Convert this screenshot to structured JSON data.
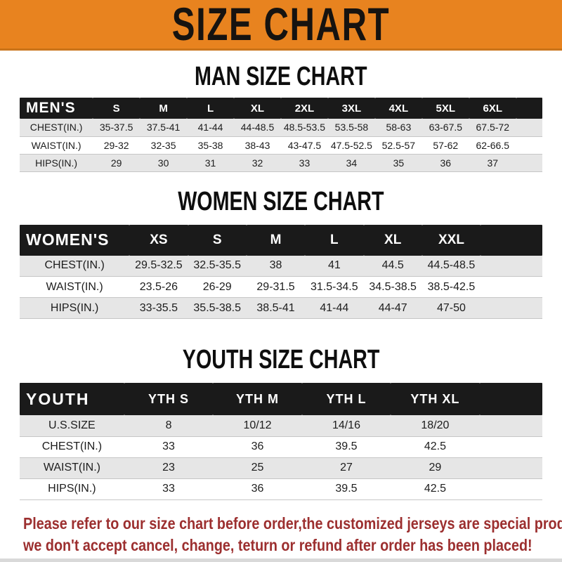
{
  "banner": {
    "title": "SIZE CHART"
  },
  "colors": {
    "banner_bg": "#E8831F",
    "header_bar": "#1A1A1A",
    "row_stripe": "#E6E6E6",
    "disclaimer_red": "#9C2F2F"
  },
  "tables": {
    "men": {
      "heading": "MAN SIZE CHART",
      "header": {
        "label": "MEN'S",
        "sizes": [
          "S",
          "M",
          "L",
          "XL",
          "2XL",
          "3XL",
          "4XL",
          "5XL",
          "6XL"
        ]
      },
      "col_widths": [
        "14%",
        "9%",
        "9%",
        "9%",
        "9%",
        "9%",
        "9%",
        "9%",
        "9%",
        "9%",
        "5%"
      ],
      "rows": [
        {
          "label": "CHEST(IN.)",
          "values": [
            "35-37.5",
            "37.5-41",
            "41-44",
            "44-48.5",
            "48.5-53.5",
            "53.5-58",
            "58-63",
            "63-67.5",
            "67.5-72"
          ]
        },
        {
          "label": "WAIST(IN.)",
          "values": [
            "29-32",
            "32-35",
            "35-38",
            "38-43",
            "43-47.5",
            "47.5-52.5",
            "52.5-57",
            "57-62",
            "62-66.5"
          ]
        },
        {
          "label": "HIPS(IN.)",
          "values": [
            "29",
            "30",
            "31",
            "32",
            "33",
            "34",
            "35",
            "36",
            "37"
          ]
        }
      ]
    },
    "women": {
      "heading": "WOMEN SIZE CHART",
      "header": {
        "label": "WOMEN'S",
        "sizes": [
          "XS",
          "S",
          "M",
          "L",
          "XL",
          "XXL"
        ]
      },
      "col_widths": [
        "21%",
        "11.2%",
        "11.2%",
        "11.2%",
        "11.2%",
        "11.2%",
        "11.2%",
        "11.8%"
      ],
      "rows": [
        {
          "label": "CHEST(IN.)",
          "values": [
            "29.5-32.5",
            "32.5-35.5",
            "38",
            "41",
            "44.5",
            "44.5-48.5"
          ]
        },
        {
          "label": "WAIST(IN.)",
          "values": [
            "23.5-26",
            "26-29",
            "29-31.5",
            "31.5-34.5",
            "34.5-38.5",
            "38.5-42.5"
          ]
        },
        {
          "label": "HIPS(IN.)",
          "values": [
            "33-35.5",
            "35.5-38.5",
            "38.5-41",
            "41-44",
            "44-47",
            "47-50"
          ]
        }
      ]
    },
    "youth": {
      "heading": "YOUTH SIZE CHART",
      "header": {
        "label": "YOUTH",
        "sizes": [
          "YTH S",
          "YTH M",
          "YTH L",
          "YTH XL"
        ]
      },
      "col_widths": [
        "20%",
        "17%",
        "17%",
        "17%",
        "17%",
        "12%"
      ],
      "rows": [
        {
          "label": "U.S.SIZE",
          "values": [
            "8",
            "10/12",
            "14/16",
            "18/20"
          ]
        },
        {
          "label": "CHEST(IN.)",
          "values": [
            "33",
            "36",
            "39.5",
            "42.5"
          ]
        },
        {
          "label": "WAIST(IN.)",
          "values": [
            "23",
            "25",
            "27",
            "29"
          ]
        },
        {
          "label": "HIPS(IN.)",
          "values": [
            "33",
            "36",
            "39.5",
            "42.5"
          ]
        }
      ]
    }
  },
  "disclaimer": {
    "line1": "Please refer to our size chart before order,the customized jerseys are special products,",
    "line2": "we don't accept cancel, change, teturn or refund after order has been placed!"
  }
}
